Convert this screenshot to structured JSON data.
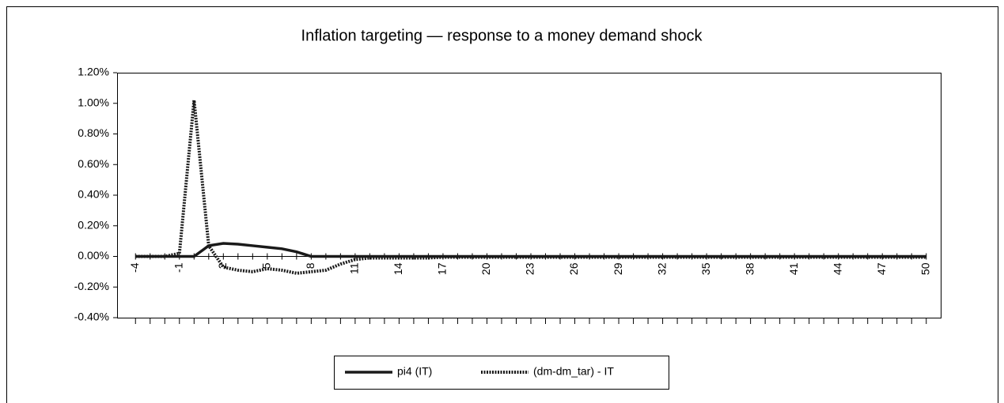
{
  "chart_data": {
    "type": "line",
    "title": "Inflation targeting — response to a money demand shock",
    "categories": [
      "-4",
      null,
      null,
      "-1",
      null,
      null,
      "2",
      null,
      null,
      "5",
      null,
      null,
      "8",
      null,
      null,
      "11",
      null,
      null,
      "14",
      null,
      null,
      "17",
      null,
      null,
      "20",
      null,
      null,
      "23",
      null,
      null,
      "26",
      null,
      null,
      "29",
      null,
      null,
      "32",
      null,
      null,
      "35",
      null,
      null,
      "38",
      null,
      null,
      "41",
      null,
      null,
      "44",
      null,
      null,
      "47",
      null,
      null,
      "50"
    ],
    "series": [
      {
        "name": "pi4 (IT)",
        "color": "#1a1a1a",
        "style": "solid",
        "values": [
          0,
          0,
          0,
          0,
          0,
          0.07,
          0.085,
          0.08,
          0.07,
          0.06,
          0.05,
          0.03,
          0,
          0,
          0,
          0,
          0,
          0,
          0,
          0,
          0,
          0,
          0,
          0,
          0,
          0,
          0,
          0,
          0,
          0,
          0,
          0,
          0,
          0,
          0,
          0,
          0,
          0,
          0,
          0,
          0,
          0,
          0,
          0,
          0,
          0,
          0,
          0,
          0,
          0,
          0,
          0,
          0,
          0,
          0
        ]
      },
      {
        "name": "(dm-dm_tar) - IT",
        "color": "#1a1a1a",
        "style": "dotted",
        "values": [
          0,
          0,
          0,
          0.02,
          1.02,
          0.07,
          -0.07,
          -0.09,
          -0.1,
          -0.08,
          -0.09,
          -0.11,
          -0.1,
          -0.09,
          -0.05,
          -0.02,
          -0.01,
          -0.01,
          -0.01,
          -0.01,
          -0.01,
          -0.005,
          -0.005,
          -0.005,
          -0.005,
          -0.005,
          -0.005,
          -0.005,
          -0.005,
          -0.005,
          -0.005,
          -0.005,
          -0.005,
          -0.005,
          -0.005,
          -0.005,
          -0.005,
          -0.005,
          -0.005,
          -0.005,
          -0.005,
          -0.005,
          -0.005,
          -0.005,
          -0.005,
          -0.005,
          -0.005,
          -0.005,
          -0.005,
          -0.005,
          -0.005,
          -0.005,
          -0.005,
          -0.005,
          -0.005
        ]
      }
    ],
    "ylim": [
      -0.4,
      1.2
    ],
    "yticks": [
      {
        "value": -0.4,
        "label": "-0.40%"
      },
      {
        "value": -0.2,
        "label": "-0.20%"
      },
      {
        "value": 0,
        "label": "0.00%"
      },
      {
        "value": 0.2,
        "label": "0.20%"
      },
      {
        "value": 0.4,
        "label": "0.40%"
      },
      {
        "value": 0.6,
        "label": "0.60%"
      },
      {
        "value": 0.8,
        "label": "0.80%"
      },
      {
        "value": 1.0,
        "label": "1.00%"
      },
      {
        "value": 1.2,
        "label": "1.20%"
      }
    ],
    "grid": false,
    "legend": "bottom"
  }
}
